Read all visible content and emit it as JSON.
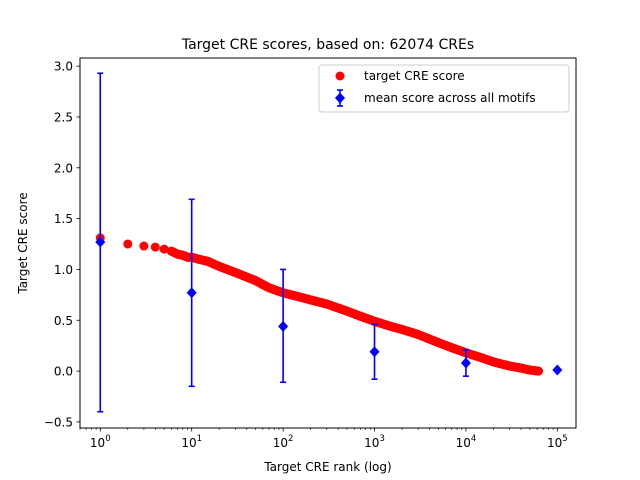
{
  "chart_data": {
    "type": "scatter",
    "title": "Target CRE scores, based on: 62074 CREs",
    "xlabel": "Target CRE rank (log)",
    "ylabel": "Target CRE score",
    "xscale": "log",
    "xlim": [
      0.6,
      160000
    ],
    "ylim": [
      -0.56,
      3.08
    ],
    "x_ticks": [
      1,
      10,
      100,
      1000,
      10000,
      100000
    ],
    "x_tick_labels": [
      {
        "base": "10",
        "exp": "0"
      },
      {
        "base": "10",
        "exp": "1"
      },
      {
        "base": "10",
        "exp": "2"
      },
      {
        "base": "10",
        "exp": "3"
      },
      {
        "base": "10",
        "exp": "4"
      },
      {
        "base": "10",
        "exp": "5"
      }
    ],
    "y_ticks": [
      -0.5,
      0.0,
      0.5,
      1.0,
      1.5,
      2.0,
      2.5,
      3.0
    ],
    "y_tick_labels": [
      "−0.5",
      "0.0",
      "0.5",
      "1.0",
      "1.5",
      "2.0",
      "2.5",
      "3.0"
    ],
    "grid": false,
    "legend_position": "top-right",
    "series": [
      {
        "name": "target CRE score",
        "kind": "points",
        "color": "#ff0000",
        "marker": "circle",
        "points": [
          [
            1,
            1.31
          ],
          [
            2,
            1.25
          ],
          [
            3,
            1.23
          ],
          [
            4,
            1.22
          ],
          [
            5,
            1.2
          ],
          [
            6,
            1.18
          ],
          [
            7,
            1.15
          ],
          [
            8,
            1.14
          ],
          [
            9,
            1.12
          ],
          [
            10,
            1.12
          ],
          [
            12,
            1.1
          ],
          [
            15,
            1.08
          ],
          [
            20,
            1.03
          ],
          [
            30,
            0.97
          ],
          [
            50,
            0.89
          ],
          [
            70,
            0.82
          ],
          [
            100,
            0.77
          ],
          [
            150,
            0.73
          ],
          [
            200,
            0.7
          ],
          [
            300,
            0.66
          ],
          [
            500,
            0.59
          ],
          [
            700,
            0.54
          ],
          [
            1000,
            0.49
          ],
          [
            1500,
            0.44
          ],
          [
            2000,
            0.41
          ],
          [
            3000,
            0.36
          ],
          [
            5000,
            0.28
          ],
          [
            7000,
            0.23
          ],
          [
            10000,
            0.18
          ],
          [
            15000,
            0.13
          ],
          [
            20000,
            0.09
          ],
          [
            30000,
            0.05
          ],
          [
            40000,
            0.03
          ],
          [
            50000,
            0.01
          ],
          [
            62074,
            0.0
          ]
        ]
      },
      {
        "name": "mean score across all motifs",
        "kind": "errorbar",
        "color": "#0000ff",
        "marker": "diamond",
        "points": [
          {
            "x": 1,
            "y": 1.27,
            "lower": -0.4,
            "upper": 2.93
          },
          {
            "x": 10,
            "y": 0.77,
            "lower": -0.15,
            "upper": 1.69
          },
          {
            "x": 100,
            "y": 0.44,
            "lower": -0.11,
            "upper": 1.0
          },
          {
            "x": 1000,
            "y": 0.19,
            "lower": -0.08,
            "upper": 0.46
          },
          {
            "x": 10000,
            "y": 0.08,
            "lower": -0.05,
            "upper": 0.21
          },
          {
            "x": 100000,
            "y": 0.01,
            "lower": 0.01,
            "upper": 0.01
          }
        ]
      }
    ]
  }
}
